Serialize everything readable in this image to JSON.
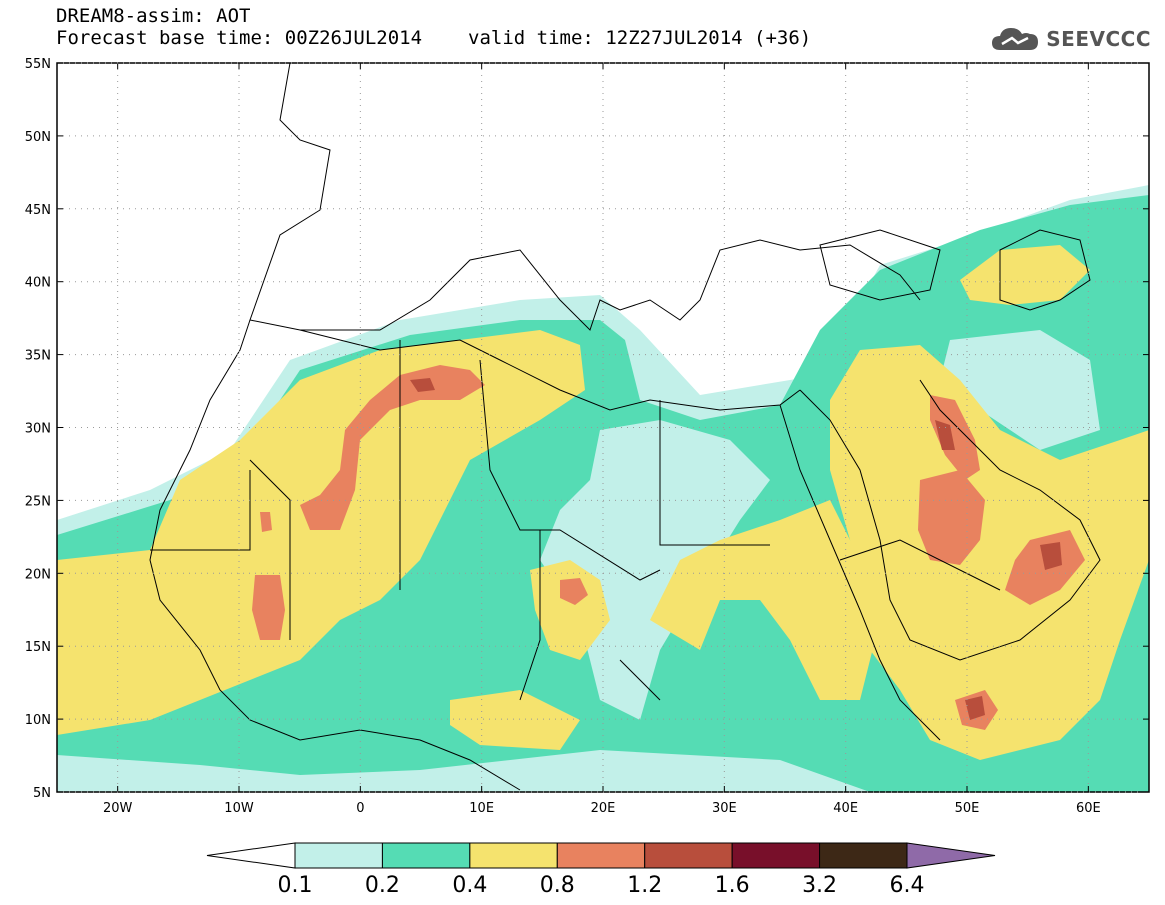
{
  "header": {
    "title_line1": "DREAM8-assim: AOT",
    "base_time": "Forecast base time: 00Z26JUL2014",
    "valid_time": "valid time: 12Z27JUL2014 (+36)",
    "logo_text": "SEEVCCC"
  },
  "map": {
    "lon_range": [
      -25,
      65
    ],
    "lat_range": [
      5,
      55
    ],
    "lat_ticks": [
      "55N",
      "50N",
      "45N",
      "40N",
      "35N",
      "30N",
      "25N",
      "20N",
      "15N",
      "10N",
      "5N"
    ],
    "lat_values": [
      55,
      50,
      45,
      40,
      35,
      30,
      25,
      20,
      15,
      10,
      5
    ],
    "lon_ticks": [
      "20W",
      "10W",
      "0",
      "10E",
      "20E",
      "30E",
      "40E",
      "50E",
      "60E"
    ],
    "lon_values": [
      -20,
      -10,
      0,
      10,
      20,
      30,
      40,
      50,
      60
    ]
  },
  "colorbar": {
    "labels": [
      "0.1",
      "0.2",
      "0.4",
      "0.8",
      "1.2",
      "1.6",
      "3.2",
      "6.4"
    ],
    "colors": [
      "#c2f0e9",
      "#55dcb4",
      "#f5e36e",
      "#e8825f",
      "#b84e3c",
      "#780f2a",
      "#3d2816"
    ],
    "over_color": "#8f6aa8",
    "under_color": "#ffffff"
  }
}
